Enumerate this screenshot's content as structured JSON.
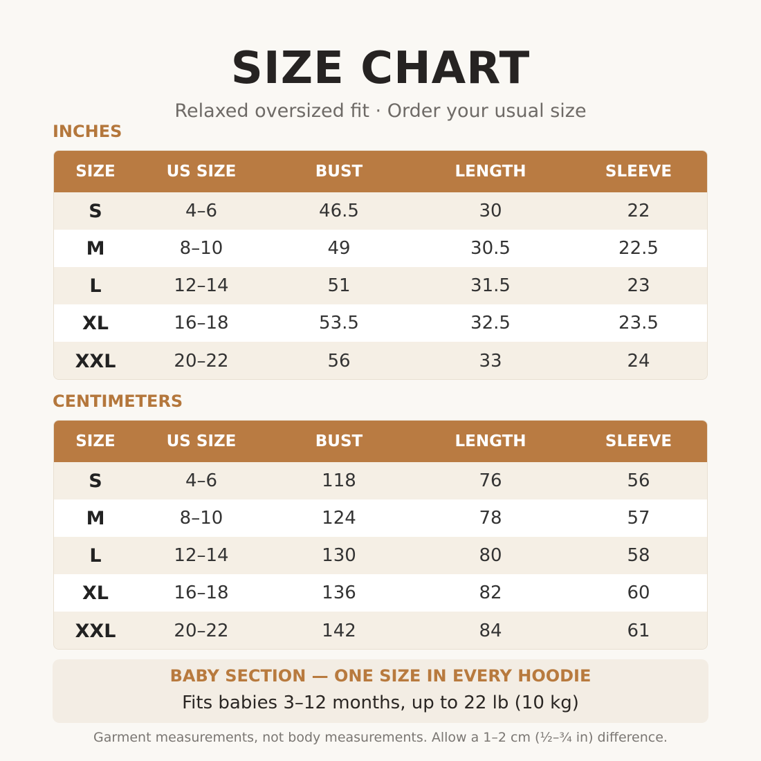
{
  "header": {
    "title": "SIZE CHART",
    "subtitle": "Relaxed oversized fit  ·  Order your usual size"
  },
  "tables": [
    {
      "label": "INCHES",
      "columns": [
        "SIZE",
        "US SIZE",
        "BUST",
        "LENGTH",
        "SLEEVE"
      ],
      "rows": [
        [
          "S",
          "4–6",
          46.5,
          30,
          22
        ],
        [
          "M",
          "8–10",
          49,
          30.5,
          22.5
        ],
        [
          "L",
          "12–14",
          51,
          31.5,
          23
        ],
        [
          "XL",
          "16–18",
          53.5,
          32.5,
          23.5
        ],
        [
          "XXL",
          "20–22",
          56,
          33,
          24
        ]
      ]
    },
    {
      "label": "CENTIMETERS",
      "columns": [
        "SIZE",
        "US SIZE",
        "BUST",
        "LENGTH",
        "SLEEVE"
      ],
      "rows": [
        [
          "S",
          "4–6",
          118,
          76,
          56
        ],
        [
          "M",
          "8–10",
          124,
          78,
          57
        ],
        [
          "L",
          "12–14",
          130,
          80,
          58
        ],
        [
          "XL",
          "16–18",
          136,
          82,
          60
        ],
        [
          "XXL",
          "20–22",
          142,
          84,
          61
        ]
      ]
    }
  ],
  "baby": {
    "title": "BABY SECTION  —  ONE SIZE IN EVERY HOODIE",
    "text": "Fits babies 3–12 months, up to 22 lb (10 kg)"
  },
  "footnote": "Garment measurements, not body measurements. Allow a 1–2 cm (½–¾ in) difference."
}
